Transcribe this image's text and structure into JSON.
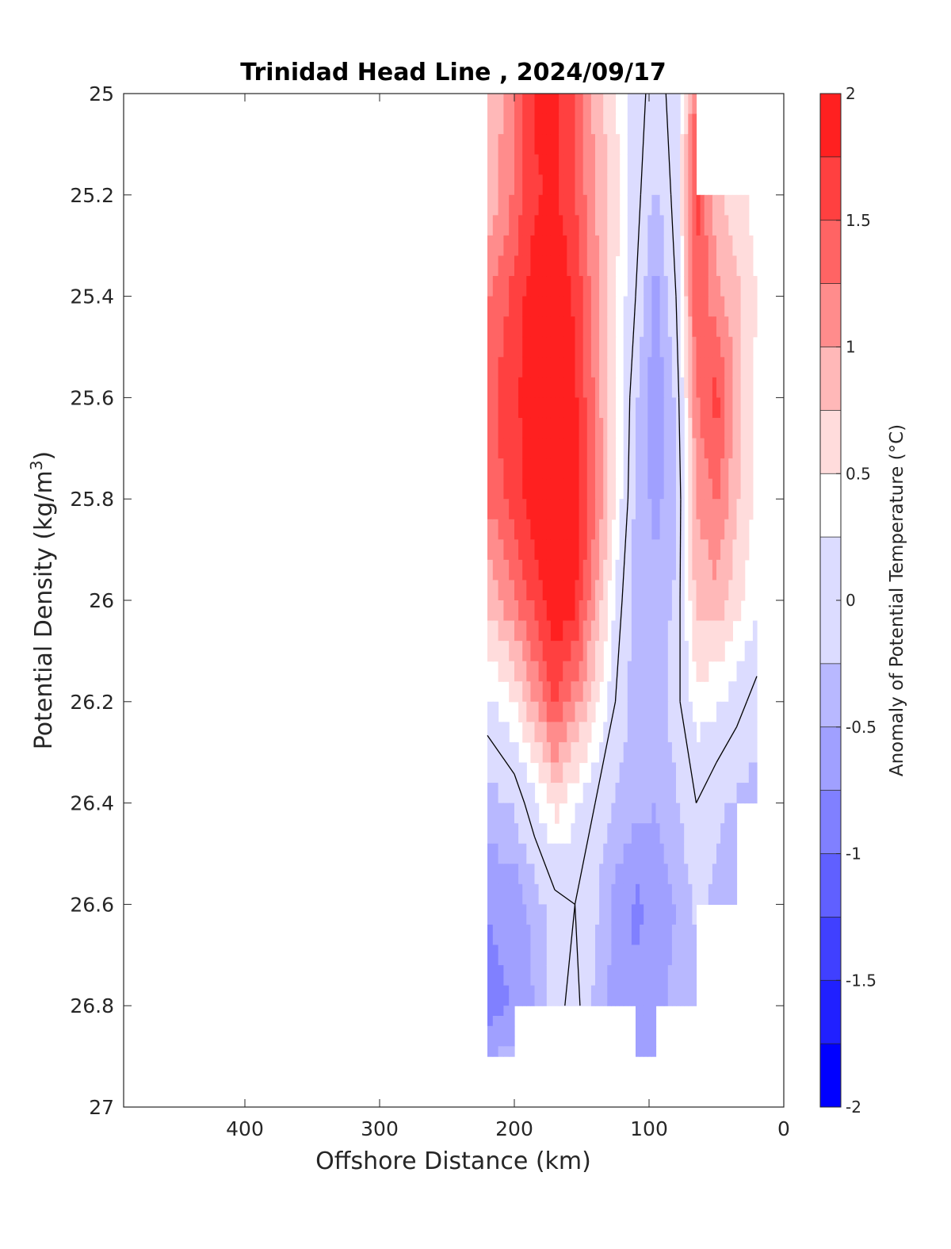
{
  "chart_data": {
    "type": "contour",
    "title": "Trinidad Head Line , 2024/09/17",
    "xlabel": "Offshore Distance (km)",
    "ylabel_main": "Potential Density (kg/m",
    "ylabel_sup": "3",
    "ylabel_close": ")",
    "colorbar_label": "Anomaly of Potential Temperature (°C)",
    "xlim": [
      490,
      0
    ],
    "ylim": [
      25,
      27
    ],
    "y_reversed": true,
    "x_ticks": [
      400,
      300,
      200,
      100,
      0
    ],
    "y_ticks": [
      25,
      25.2,
      25.4,
      25.6,
      25.8,
      26,
      26.2,
      26.4,
      26.6,
      26.8,
      27
    ],
    "x_tick_labels": [
      "400",
      "300",
      "200",
      "100",
      "0"
    ],
    "y_tick_labels": [
      "25",
      "25.2",
      "25.4",
      "25.6",
      "25.8",
      "26",
      "26.2",
      "26.4",
      "26.6",
      "26.8",
      "27"
    ],
    "colorbar_ticks": [
      2,
      1.5,
      1,
      0.5,
      0,
      -0.5,
      -1,
      -1.5,
      -2
    ],
    "colorbar_tick_labels": [
      "2",
      "1.5",
      "1",
      "0.5",
      "0",
      "-0.5",
      "-1",
      "-1.5",
      "-2"
    ],
    "contour_levels": [
      -2,
      -1.75,
      -1.5,
      -1.25,
      -1,
      -0.75,
      -0.5,
      -0.25,
      0.25,
      0.5,
      0.75,
      1,
      1.25,
      1.5,
      1.75,
      2
    ],
    "colormap": [
      "#0000ff",
      "#2020ff",
      "#4040ff",
      "#6060ff",
      "#8080ff",
      "#a0a0ff",
      "#b8b8ff",
      "#dcdcff",
      "#ffffff",
      "#ffdcdc",
      "#ffb8b8",
      "#ff8c8c",
      "#ff6464",
      "#ff4040",
      "#ff2020",
      "#ff0000"
    ],
    "grid": false,
    "x_stations": [
      220,
      200,
      185,
      170,
      155,
      140,
      125,
      110,
      95,
      80,
      65,
      50,
      35,
      20
    ],
    "y_levels": [
      25.0,
      25.2,
      25.4,
      25.6,
      25.8,
      26.0,
      26.2,
      26.4,
      26.6,
      26.8,
      26.9
    ],
    "anomaly_grid": [
      [
        0.7,
        1.2,
        1.8,
        1.8,
        1.5,
        0.9,
        0.5,
        0.1,
        -0.1,
        0.1,
        1.3,
        null,
        null,
        null
      ],
      [
        0.8,
        1.3,
        1.7,
        1.8,
        1.5,
        1.0,
        0.6,
        0.1,
        -0.3,
        0.1,
        1.6,
        0.8,
        0.6,
        0.4
      ],
      [
        1.2,
        1.6,
        1.9,
        2.0,
        1.7,
        1.1,
        0.5,
        0.0,
        -0.6,
        0.0,
        1.5,
        1.1,
        0.8,
        0.5
      ],
      [
        1.4,
        1.7,
        1.9,
        2.1,
        1.8,
        1.2,
        0.5,
        -0.2,
        -0.7,
        -0.2,
        1.2,
        1.6,
        0.9,
        0.4
      ],
      [
        1.3,
        1.6,
        1.9,
        2.1,
        1.9,
        1.3,
        0.5,
        -0.3,
        -0.6,
        -0.3,
        1.0,
        1.3,
        0.8,
        0.4
      ],
      [
        0.8,
        1.2,
        1.6,
        2.0,
        1.8,
        1.0,
        0.2,
        -0.4,
        -0.4,
        -0.2,
        0.8,
        0.9,
        0.6,
        0.3
      ],
      [
        0.2,
        0.5,
        1.0,
        1.5,
        1.1,
        0.6,
        0.0,
        -0.4,
        -0.4,
        -0.1,
        0.4,
        0.3,
        0.1,
        -0.1
      ],
      [
        -0.4,
        -0.2,
        0.2,
        0.6,
        0.3,
        0.0,
        -0.3,
        -0.4,
        -0.5,
        -0.3,
        0.0,
        -0.2,
        -0.3,
        -0.4
      ],
      [
        -0.7,
        -0.7,
        -0.4,
        -0.1,
        0.0,
        -0.2,
        -0.6,
        -0.8,
        -0.7,
        -0.5,
        -0.2,
        -0.3,
        -0.4,
        null
      ],
      [
        -0.9,
        -0.7,
        -0.5,
        -0.1,
        0.1,
        -0.3,
        -0.6,
        -0.7,
        -0.6,
        -0.4,
        -0.3,
        null,
        null,
        null
      ],
      [
        -0.5,
        -0.4,
        null,
        null,
        null,
        null,
        null,
        -0.6,
        -0.5,
        null,
        null,
        null,
        null,
        null
      ]
    ]
  }
}
